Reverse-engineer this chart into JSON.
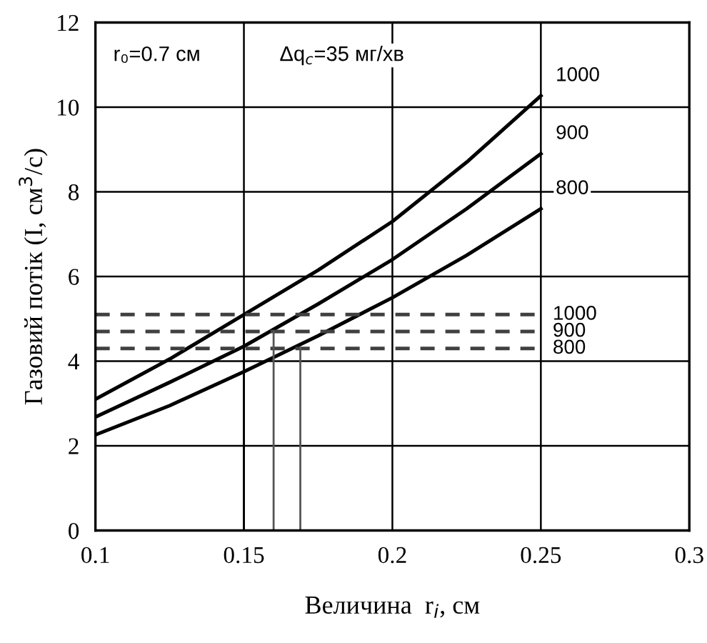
{
  "chart_data": {
    "type": "line",
    "xlabel": "Величина  r$_{i}$, см",
    "ylabel": "Газовий потік (I, см$^{3}$/с)",
    "annotations": [
      "r₀=0.7 см",
      "Δq$_{c}$=35 мг/хв"
    ],
    "xlim": [
      0.1,
      0.3
    ],
    "xticks": [
      0.1,
      0.15,
      0.2,
      0.25,
      0.3
    ],
    "ylim": [
      0,
      12
    ],
    "yticks": [
      0,
      2,
      4,
      6,
      8,
      10,
      12
    ],
    "grid": true,
    "series": [
      {
        "name": "1000",
        "color": "#000000",
        "x": [
          0.1,
          0.125,
          0.15,
          0.175,
          0.2,
          0.225,
          0.25
        ],
        "values": [
          3.1,
          4.05,
          5.1,
          6.15,
          7.3,
          8.7,
          10.27
        ]
      },
      {
        "name": "900",
        "color": "#000000",
        "x": [
          0.1,
          0.125,
          0.15,
          0.175,
          0.2,
          0.225,
          0.25
        ],
        "values": [
          2.68,
          3.5,
          4.35,
          5.35,
          6.4,
          7.6,
          8.9
        ]
      },
      {
        "name": "800",
        "color": "#000000",
        "x": [
          0.1,
          0.125,
          0.15,
          0.175,
          0.2,
          0.225,
          0.25
        ],
        "values": [
          2.26,
          2.95,
          3.75,
          4.6,
          5.5,
          6.5,
          7.6
        ]
      },
      {
        "name": "1000",
        "color": "#404040",
        "line_style": "dashed",
        "x": [
          0.1,
          0.25
        ],
        "values": [
          5.1,
          5.1
        ]
      },
      {
        "name": "900",
        "color": "#404040",
        "line_style": "dashed",
        "x": [
          0.1,
          0.25
        ],
        "values": [
          4.7,
          4.7
        ]
      },
      {
        "name": "800",
        "color": "#404040",
        "line_style": "dashed",
        "x": [
          0.1,
          0.25
        ],
        "values": [
          4.3,
          4.3
        ]
      },
      {
        "color": "#000000",
        "x": [
          0.15,
          0.15
        ],
        "values": [
          0,
          5.1
        ]
      },
      {
        "color": "#555555",
        "x": [
          0.16,
          0.16
        ],
        "values": [
          0,
          4.7
        ]
      },
      {
        "color": "#555555",
        "x": [
          0.169,
          0.169
        ],
        "values": [
          0,
          4.3
        ]
      }
    ]
  }
}
